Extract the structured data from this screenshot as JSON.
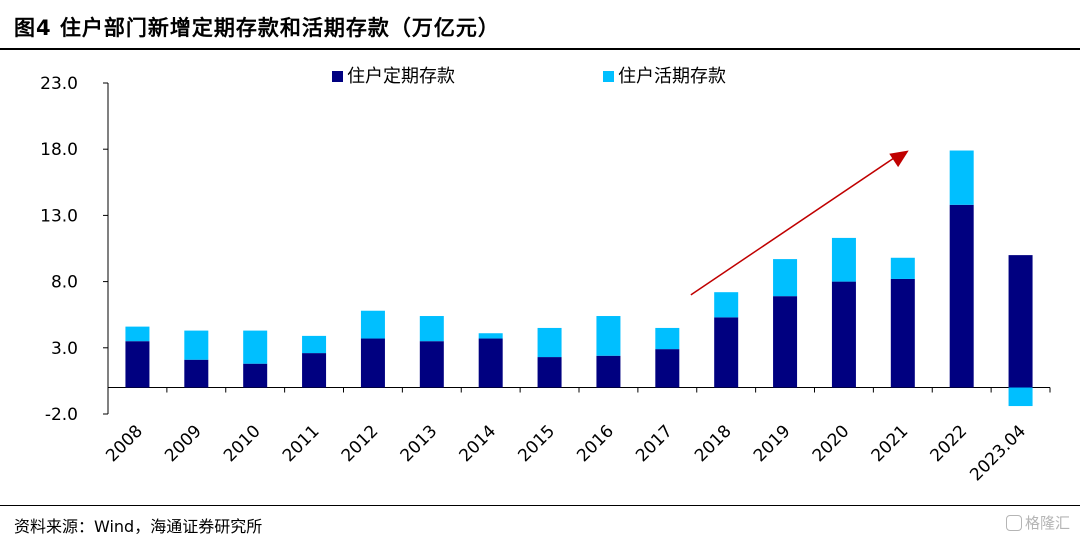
{
  "title": "图4  住户部门新增定期存款和活期存款（万亿元）",
  "source": "资料来源：Wind，海通证券研究所",
  "watermark": "格隆汇",
  "chart_data": {
    "type": "bar",
    "stacked": true,
    "categories": [
      "2008",
      "2009",
      "2010",
      "2011",
      "2012",
      "2013",
      "2014",
      "2015",
      "2016",
      "2017",
      "2018",
      "2019",
      "2020",
      "2021",
      "2022",
      "2023.04"
    ],
    "series": [
      {
        "name": "住户定期存款",
        "color": "#000080",
        "values": [
          3.5,
          2.1,
          1.8,
          2.6,
          3.7,
          3.5,
          3.7,
          2.3,
          2.4,
          2.9,
          5.3,
          6.9,
          8.0,
          8.2,
          13.8,
          10.0
        ]
      },
      {
        "name": "住户活期存款",
        "color": "#00BFFF",
        "values": [
          1.1,
          2.2,
          2.5,
          1.3,
          2.1,
          1.9,
          0.4,
          2.2,
          3.0,
          1.6,
          1.9,
          2.8,
          3.3,
          1.6,
          4.1,
          -1.4
        ]
      }
    ],
    "yticks": [
      "23.0",
      "18.0",
      "13.0",
      "8.0",
      "3.0",
      "-2.0"
    ],
    "ylim": [
      -2,
      23
    ],
    "legend_position": "top",
    "annotation": "trend-arrow from 2017 to 2022"
  }
}
